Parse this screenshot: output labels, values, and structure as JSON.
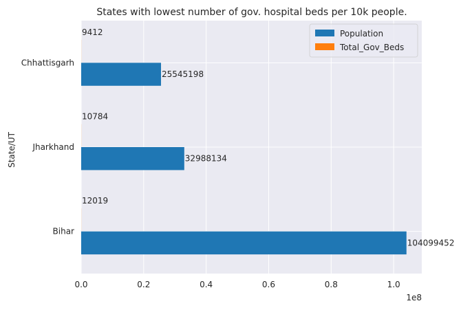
{
  "chart_data": {
    "type": "bar",
    "orientation": "horizontal",
    "title": "States with lowest number of gov. hospital beds per 10k people.",
    "ylabel": "State/UT",
    "xlabel": "",
    "x_offset_label": "1e8",
    "categories": [
      "Bihar",
      "Jharkhand",
      "Chhattisgarh"
    ],
    "series": [
      {
        "name": "Population",
        "color": "#1f77b4",
        "values": [
          104099452,
          32988134,
          25545198
        ]
      },
      {
        "name": "Total_Gov_Beds",
        "color": "#ff7f0e",
        "values": [
          12019,
          10784,
          9412
        ]
      }
    ],
    "xlim": [
      0,
      109000000
    ],
    "xticks": [
      0,
      20000000,
      40000000,
      60000000,
      80000000,
      100000000
    ],
    "xtick_labels": [
      "0.0",
      "0.2",
      "0.4",
      "0.6",
      "0.8",
      "1.0"
    ],
    "grid": true,
    "legend_position": "top-right",
    "background": "#eaeaf2"
  }
}
